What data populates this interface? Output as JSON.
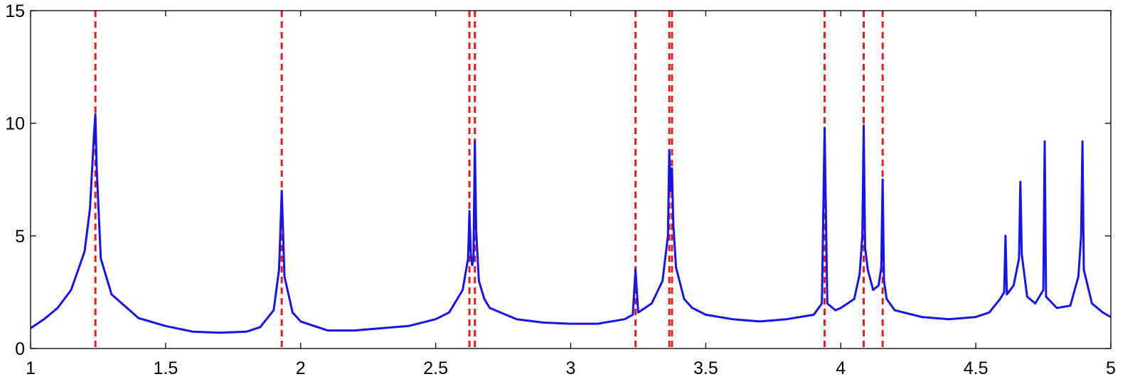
{
  "chart_data": {
    "type": "line",
    "title": "",
    "xlabel": "",
    "ylabel": "",
    "xlim": [
      1,
      5
    ],
    "ylim": [
      0,
      15
    ],
    "x_ticks": [
      1,
      1.5,
      2,
      2.5,
      3,
      3.5,
      4,
      4.5,
      5
    ],
    "y_ticks": [
      0,
      5,
      10,
      15
    ],
    "x_tick_labels": [
      "1",
      "1.5",
      "2",
      "2.5",
      "3",
      "3.5",
      "4",
      "4.5",
      "5"
    ],
    "y_tick_labels": [
      "0",
      "5",
      "10",
      "15"
    ],
    "grid": false,
    "legend": "none",
    "colors": {
      "series": "#1414f0",
      "reference": "#e81c1c"
    },
    "series": [
      {
        "x": [
          1.0,
          1.05,
          1.1,
          1.15,
          1.2,
          1.22,
          1.235,
          1.24,
          1.245,
          1.26,
          1.3,
          1.4,
          1.5,
          1.6,
          1.7,
          1.8,
          1.85,
          1.9,
          1.92,
          1.93,
          1.94,
          1.97,
          2.0,
          2.1,
          2.2,
          2.3,
          2.4,
          2.5,
          2.55,
          2.6,
          2.62,
          2.625,
          2.63,
          2.635,
          2.64,
          2.645,
          2.65,
          2.66,
          2.68,
          2.7,
          2.8,
          2.9,
          3.0,
          3.1,
          3.2,
          3.23,
          3.24,
          3.25,
          3.3,
          3.34,
          3.36,
          3.365,
          3.37,
          3.375,
          3.38,
          3.39,
          3.42,
          3.45,
          3.5,
          3.6,
          3.7,
          3.8,
          3.9,
          3.93,
          3.94,
          3.95,
          3.98,
          4.0,
          4.05,
          4.07,
          4.08,
          4.085,
          4.09,
          4.1,
          4.12,
          4.14,
          4.15,
          4.155,
          4.16,
          4.17,
          4.2,
          4.3,
          4.4,
          4.5,
          4.55,
          4.59,
          4.605,
          4.61,
          4.615,
          4.64,
          4.66,
          4.665,
          4.67,
          4.69,
          4.72,
          4.75,
          4.755,
          4.76,
          4.8,
          4.85,
          4.88,
          4.89,
          4.895,
          4.9,
          4.93,
          4.97,
          5.0
        ],
        "y": [
          0.9,
          1.3,
          1.8,
          2.6,
          4.3,
          6.2,
          9.5,
          10.4,
          8.0,
          4.0,
          2.4,
          1.35,
          1.0,
          0.75,
          0.7,
          0.75,
          0.95,
          1.7,
          3.5,
          7.0,
          3.2,
          1.6,
          1.2,
          0.8,
          0.8,
          0.9,
          1.0,
          1.3,
          1.6,
          2.6,
          4.0,
          6.1,
          4.2,
          3.7,
          4.0,
          9.2,
          5.2,
          3.0,
          2.2,
          1.8,
          1.3,
          1.15,
          1.1,
          1.1,
          1.3,
          1.5,
          3.5,
          1.6,
          2.0,
          3.0,
          5.0,
          8.8,
          7.0,
          8.0,
          5.5,
          3.6,
          2.2,
          1.8,
          1.5,
          1.3,
          1.2,
          1.3,
          1.5,
          2.0,
          9.8,
          2.0,
          1.7,
          1.8,
          2.2,
          3.3,
          5.0,
          9.9,
          4.5,
          3.5,
          2.6,
          2.8,
          3.6,
          7.5,
          3.0,
          2.2,
          1.7,
          1.4,
          1.3,
          1.4,
          1.6,
          2.2,
          2.5,
          5.0,
          2.4,
          2.8,
          4.0,
          7.4,
          4.2,
          2.3,
          2.0,
          2.6,
          9.2,
          2.3,
          1.8,
          1.9,
          3.2,
          5.0,
          9.2,
          3.5,
          2.0,
          1.6,
          1.4
        ]
      }
    ],
    "vertical_reference_lines": [
      1.24,
      1.93,
      2.625,
      2.645,
      3.24,
      3.365,
      3.375,
      3.94,
      4.085,
      4.155
    ]
  }
}
